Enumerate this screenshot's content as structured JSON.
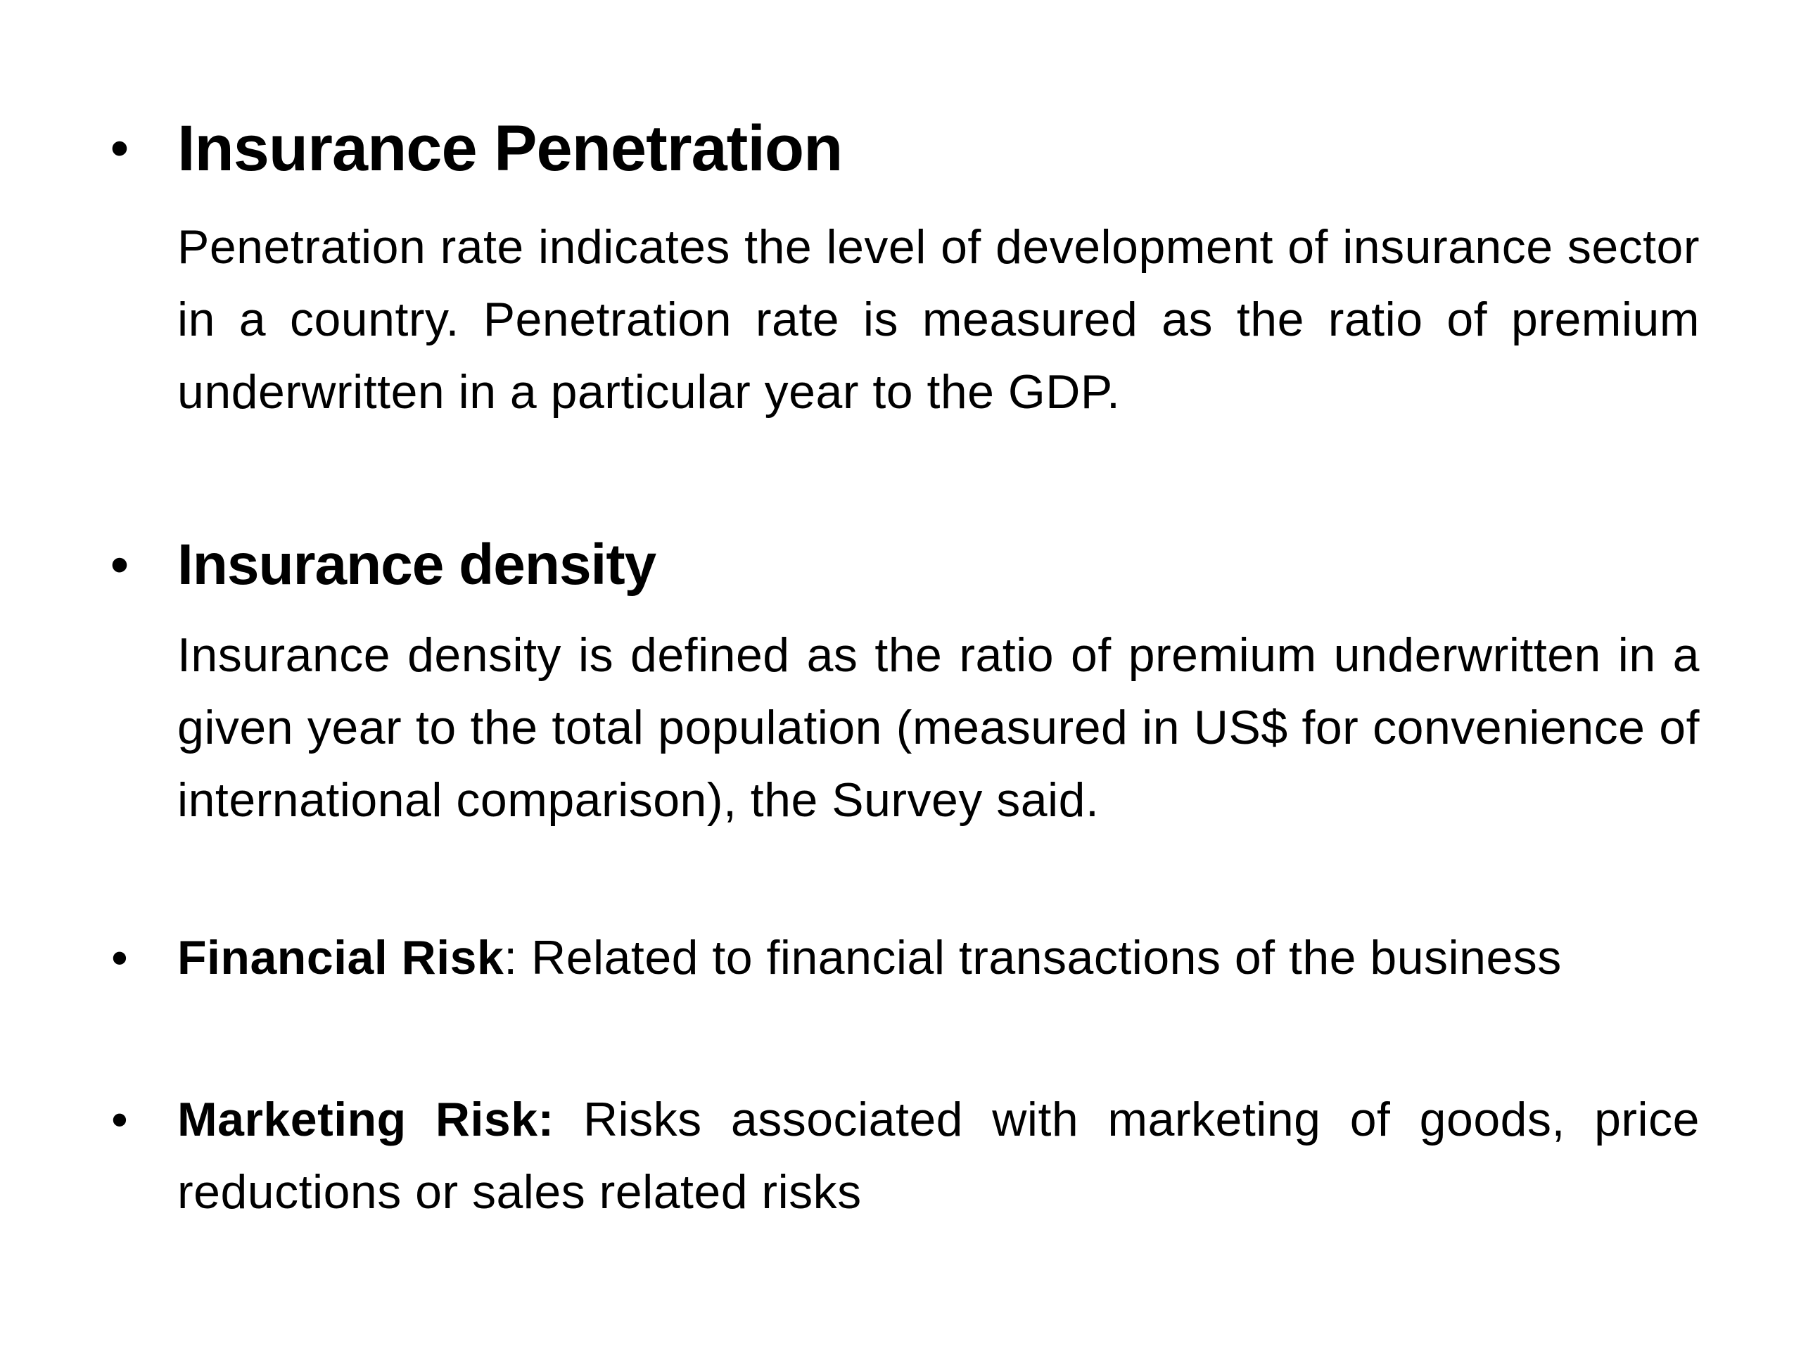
{
  "slide": {
    "bullet_glyph": "•",
    "items": [
      {
        "heading": "Insurance Penetration",
        "body": "Penetration rate indicates the level of development of insurance sector in a country. Penetration rate is measured as the ratio of premium underwritten in a particular year to the GDP."
      },
      {
        "heading": "Insurance density",
        "body": "Insurance density is defined as the ratio of premium underwritten in a given year to the total population (measured in US$ for convenience of international comparison), the Survey said."
      },
      {
        "lead": "Financial Risk",
        "separator": ":",
        "body": " Related to financial transactions of the business"
      },
      {
        "lead": "Marketing Risk:",
        "body": " Risks associated with marketing of goods, price reductions or sales related risks"
      }
    ]
  }
}
